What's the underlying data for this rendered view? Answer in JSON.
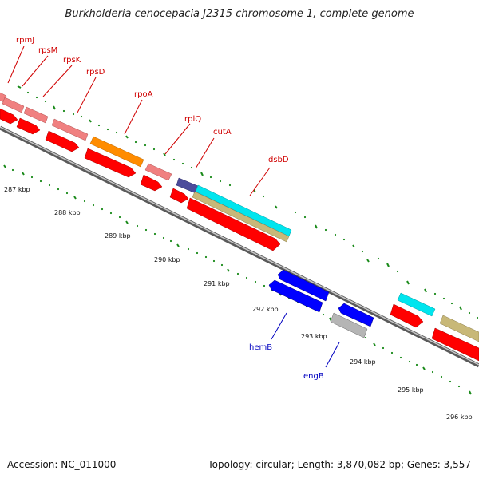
{
  "title": "Burkholderia cenocepacia J2315 chromosome 1, complete genome",
  "footer": {
    "accession": "Accession: NC_011000",
    "summary": "Topology: circular; Length: 3,870,082 bp; Genes: 3,557"
  },
  "colors": {
    "forward_cds": "#ff0000",
    "reverse_cds": "#0000ff",
    "rna_pink": "#f08080",
    "orange": "#ff8c00",
    "cyan": "#00e5ee",
    "khaki": "#c8b878",
    "dark_blue": "#4b4b9b",
    "gray": "#b5b5b5",
    "tick_green": "#1a8a1a",
    "backbone": "#808080"
  },
  "kbp_labels": [
    "287 kbp",
    "288 kbp",
    "289 kbp",
    "290 kbp",
    "291 kbp",
    "292 kbp",
    "293 kbp",
    "294 kbp",
    "295 kbp",
    "296 kbp"
  ],
  "gene_labels_top": [
    "rpmJ",
    "rpsM",
    "rpsK",
    "rpsD",
    "rpoA",
    "rplQ",
    "cutA",
    "dsbD"
  ],
  "gene_labels_bottom": [
    "hemB",
    "engB"
  ]
}
